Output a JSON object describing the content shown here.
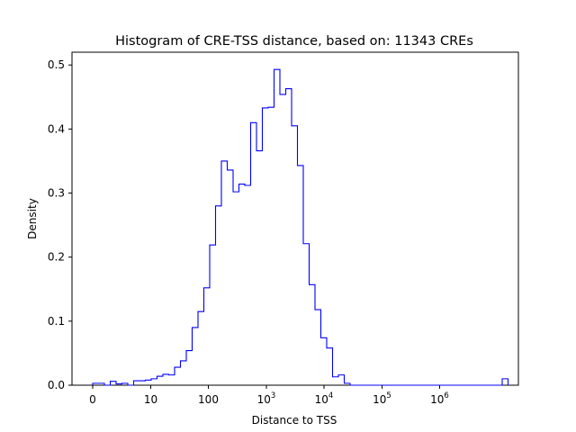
{
  "chart_data": {
    "type": "histogram",
    "title": "Histogram of CRE-TSS distance, based on: 11343 CREs",
    "xlabel": "Distance to TSS",
    "ylabel": "Density",
    "ylim": [
      0,
      0.52
    ],
    "yticks": [
      "0.0",
      "0.1",
      "0.2",
      "0.3",
      "0.4",
      "0.5"
    ],
    "xticks": [
      {
        "label": "0",
        "sup": ""
      },
      {
        "label": "10",
        "sup": ""
      },
      {
        "label": "100",
        "sup": ""
      },
      {
        "label": "10",
        "sup": "3"
      },
      {
        "label": "10",
        "sup": "4"
      },
      {
        "label": "10",
        "sup": "5"
      },
      {
        "label": "10",
        "sup": "6"
      }
    ],
    "series_color": "#0000ff",
    "grid": false,
    "bin_count": 71,
    "density": [
      0.003,
      0.003,
      0.0,
      0.006,
      0.002,
      0.003,
      0.0,
      0.007,
      0.007,
      0.008,
      0.01,
      0.014,
      0.017,
      0.016,
      0.028,
      0.038,
      0.054,
      0.09,
      0.115,
      0.152,
      0.219,
      0.28,
      0.35,
      0.336,
      0.302,
      0.314,
      0.312,
      0.41,
      0.366,
      0.433,
      0.434,
      0.493,
      0.454,
      0.463,
      0.405,
      0.343,
      0.221,
      0.157,
      0.118,
      0.074,
      0.058,
      0.013,
      0.016,
      0.003,
      0.0,
      0.0,
      0.0,
      0.0,
      0.0,
      0.0,
      0.0,
      0.0,
      0.0,
      0.0,
      0.0,
      0.0,
      0.0,
      0.0,
      0.0,
      0.0,
      0.0,
      0.0,
      0.0,
      0.0,
      0.0,
      0.0,
      0.0,
      0.0,
      0.0,
      0.0,
      0.01
    ]
  }
}
